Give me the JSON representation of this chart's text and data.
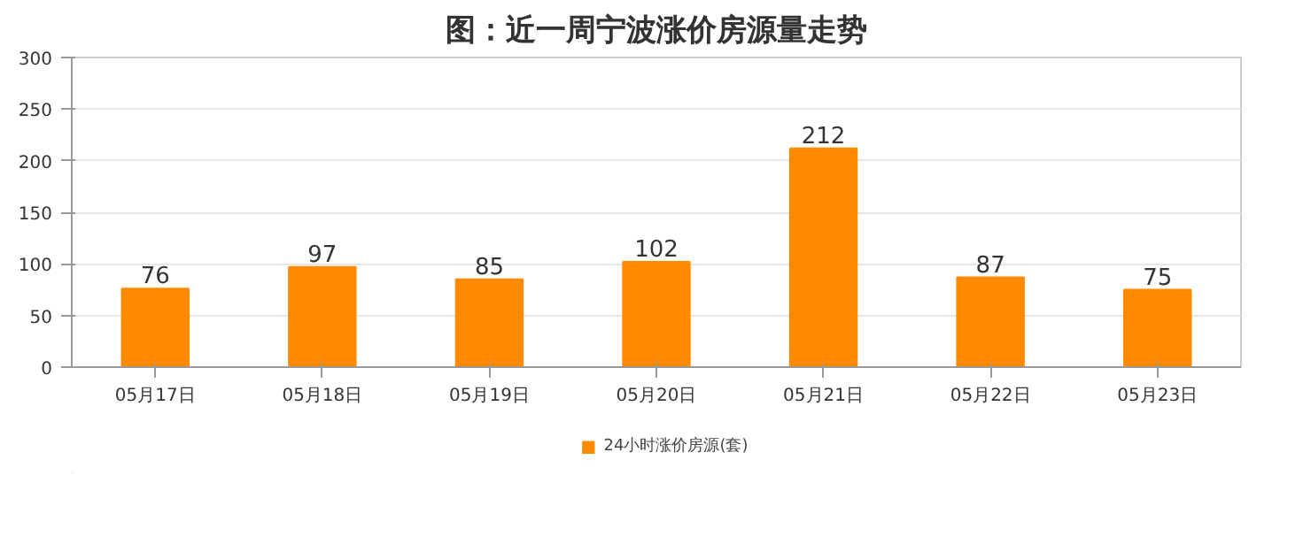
{
  "chart_data": {
    "type": "bar",
    "title": "图：近一周宁波涨价房源量走势",
    "categories": [
      "05月17日",
      "05月18日",
      "05月19日",
      "05月20日",
      "05月21日",
      "05月22日",
      "05月23日"
    ],
    "series": [
      {
        "name": "24小时涨价房源(套)",
        "color": "#ff8a00",
        "values": [
          76,
          97,
          85,
          102,
          212,
          87,
          75
        ]
      }
    ],
    "ylim": [
      0,
      300
    ],
    "yticks": [
      0,
      50,
      100,
      150,
      200,
      250,
      300
    ],
    "grid": "y",
    "legend": "bottom",
    "data_labels": true
  }
}
